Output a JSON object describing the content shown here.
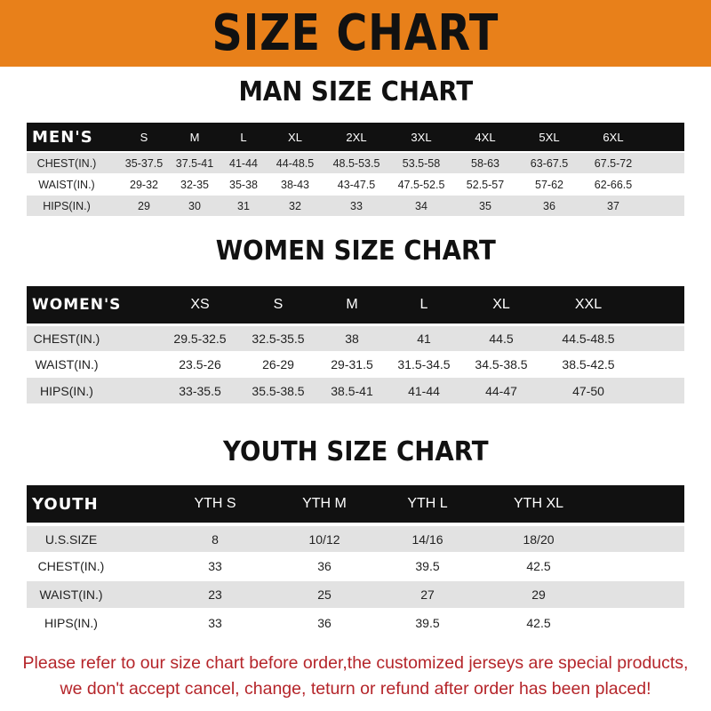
{
  "banner": {
    "title": "SIZE CHART",
    "color": "#e8801a"
  },
  "men": {
    "title": "MAN SIZE CHART",
    "header": [
      "MEN'S",
      "S",
      "M",
      "L",
      "XL",
      "2XL",
      "3XL",
      "4XL",
      "5XL",
      "6XL"
    ],
    "rows": [
      [
        "CHEST(IN.)",
        "35-37.5",
        "37.5-41",
        "41-44",
        "44-48.5",
        "48.5-53.5",
        "53.5-58",
        "58-63",
        "63-67.5",
        "67.5-72"
      ],
      [
        "WAIST(IN.)",
        "29-32",
        "32-35",
        "35-38",
        "38-43",
        "43-47.5",
        "47.5-52.5",
        "52.5-57",
        "57-62",
        "62-66.5"
      ],
      [
        "HIPS(IN.)",
        "29",
        "30",
        "31",
        "32",
        "33",
        "34",
        "35",
        "36",
        "37"
      ]
    ]
  },
  "women": {
    "title": "WOMEN SIZE CHART",
    "header": [
      "WOMEN'S",
      "XS",
      "S",
      "M",
      "L",
      "XL",
      "XXL"
    ],
    "rows": [
      [
        "CHEST(IN.)",
        "29.5-32.5",
        "32.5-35.5",
        "38",
        "41",
        "44.5",
        "44.5-48.5"
      ],
      [
        "WAIST(IN.)",
        "23.5-26",
        "26-29",
        "29-31.5",
        "31.5-34.5",
        "34.5-38.5",
        "38.5-42.5"
      ],
      [
        "HIPS(IN.)",
        "33-35.5",
        "35.5-38.5",
        "38.5-41",
        "41-44",
        "44-47",
        "47-50"
      ]
    ]
  },
  "youth": {
    "title": "YOUTH SIZE CHART",
    "header": [
      "YOUTH",
      "YTH S",
      "YTH M",
      "YTH L",
      "YTH XL"
    ],
    "rows": [
      [
        "U.S.SIZE",
        "8",
        "10/12",
        "14/16",
        "18/20"
      ],
      [
        "CHEST(IN.)",
        "33",
        "36",
        "39.5",
        "42.5"
      ],
      [
        "WAIST(IN.)",
        "23",
        "25",
        "27",
        "29"
      ],
      [
        "HIPS(IN.)",
        "33",
        "36",
        "39.5",
        "42.5"
      ]
    ]
  },
  "footer": {
    "line1": "Please refer to our size chart before order,the customized jerseys are special products,",
    "line2": "we don't accept cancel, change, teturn or refund after order has been placed!",
    "color": "#b5252a"
  }
}
